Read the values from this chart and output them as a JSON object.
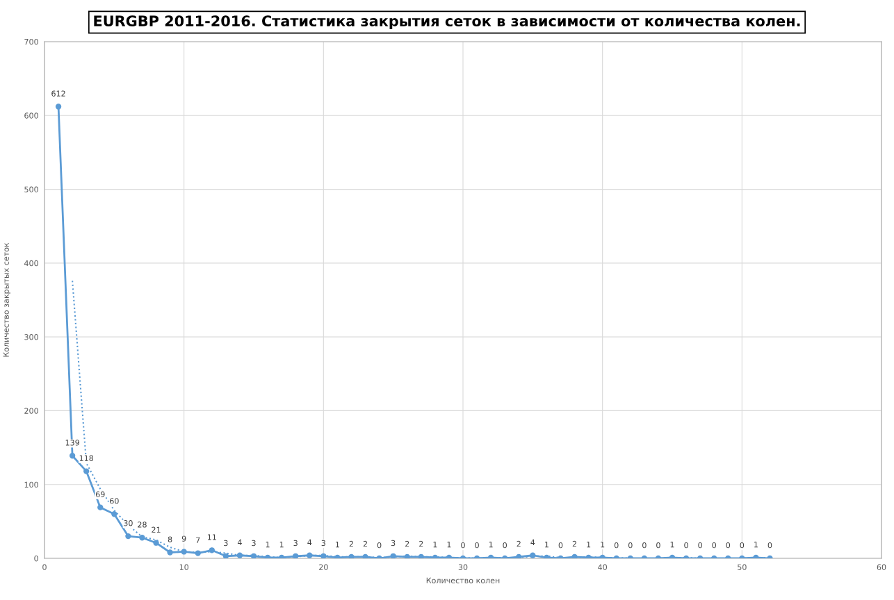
{
  "chart_data": {
    "type": "line",
    "title": "EURGBP 2011-2016. Статистика закрытия сеток в зависимости от количества колен.",
    "xlabel": "Количество колен",
    "ylabel": "Количество закрытых сеток",
    "xlim": [
      0,
      60
    ],
    "xticks": [
      0,
      10,
      20,
      30,
      40,
      50,
      60
    ],
    "ylim": [
      0,
      700
    ],
    "yticks": [
      0,
      100,
      200,
      300,
      400,
      500,
      600,
      700
    ],
    "grid": true,
    "legend": false,
    "series": [
      {
        "color": "#5b9bd5",
        "marker": "circle",
        "line_style": "solid",
        "x": [
          1,
          2,
          3,
          4,
          5,
          6,
          7,
          8,
          9,
          10,
          11,
          12,
          13,
          14,
          15,
          16,
          17,
          18,
          19,
          20,
          21,
          22,
          23,
          24,
          25,
          26,
          27,
          28,
          29,
          30,
          31,
          32,
          33,
          34,
          35,
          36,
          37,
          38,
          39,
          40,
          41,
          42,
          43,
          44,
          45,
          46,
          47,
          48,
          49,
          50,
          51,
          52
        ],
        "values": [
          612,
          139,
          118,
          69,
          60,
          30,
          28,
          21,
          8,
          9,
          7,
          11,
          3,
          4,
          3,
          1,
          1,
          3,
          4,
          3,
          1,
          2,
          2,
          0,
          3,
          2,
          2,
          1,
          1,
          0,
          0,
          1,
          0,
          2,
          4,
          1,
          0,
          2,
          1,
          1,
          0,
          0,
          0,
          0,
          1,
          0,
          0,
          0,
          0,
          0,
          1,
          0
        ],
        "value_labels": [
          "612",
          "139",
          "118",
          "69",
          "60",
          "30",
          "28",
          "21",
          "8",
          "9",
          "7",
          "11",
          "3",
          "4",
          "3",
          "1",
          "1",
          "3",
          "4",
          "3",
          "1",
          "2",
          "2",
          "0",
          "3",
          "2",
          "2",
          "1",
          "1",
          "0",
          "0",
          "1",
          "0",
          "2",
          "4",
          "1",
          "0",
          "2",
          "1",
          "1",
          "0",
          "0",
          "0",
          "0",
          "1",
          "0",
          "0",
          "0",
          "0",
          "0",
          "1",
          "0"
        ]
      },
      {
        "color": "#5b9bd5",
        "marker": "none",
        "line_style": "dotted",
        "x": [
          2,
          3,
          4,
          5,
          6,
          7,
          8,
          9,
          10,
          11,
          12,
          13,
          14,
          15,
          16,
          17,
          18,
          19,
          20,
          21,
          22,
          23,
          24,
          25,
          26,
          27,
          28,
          29,
          30,
          31,
          32,
          33,
          34,
          35,
          36,
          37,
          38,
          39,
          40,
          41,
          42,
          43,
          44,
          45,
          46,
          47,
          48,
          49,
          50,
          51,
          52
        ],
        "values": [
          376,
          129,
          94,
          65,
          45,
          29,
          25,
          15,
          9,
          8,
          9,
          7,
          4,
          4,
          2,
          1,
          2,
          4,
          4,
          2,
          2,
          2,
          1,
          2,
          3,
          2,
          2,
          1,
          1,
          0,
          1,
          1,
          1,
          3,
          3,
          1,
          1,
          2,
          1,
          1,
          0,
          0,
          0,
          1,
          1,
          0,
          0,
          0,
          0,
          1,
          1
        ]
      }
    ]
  }
}
